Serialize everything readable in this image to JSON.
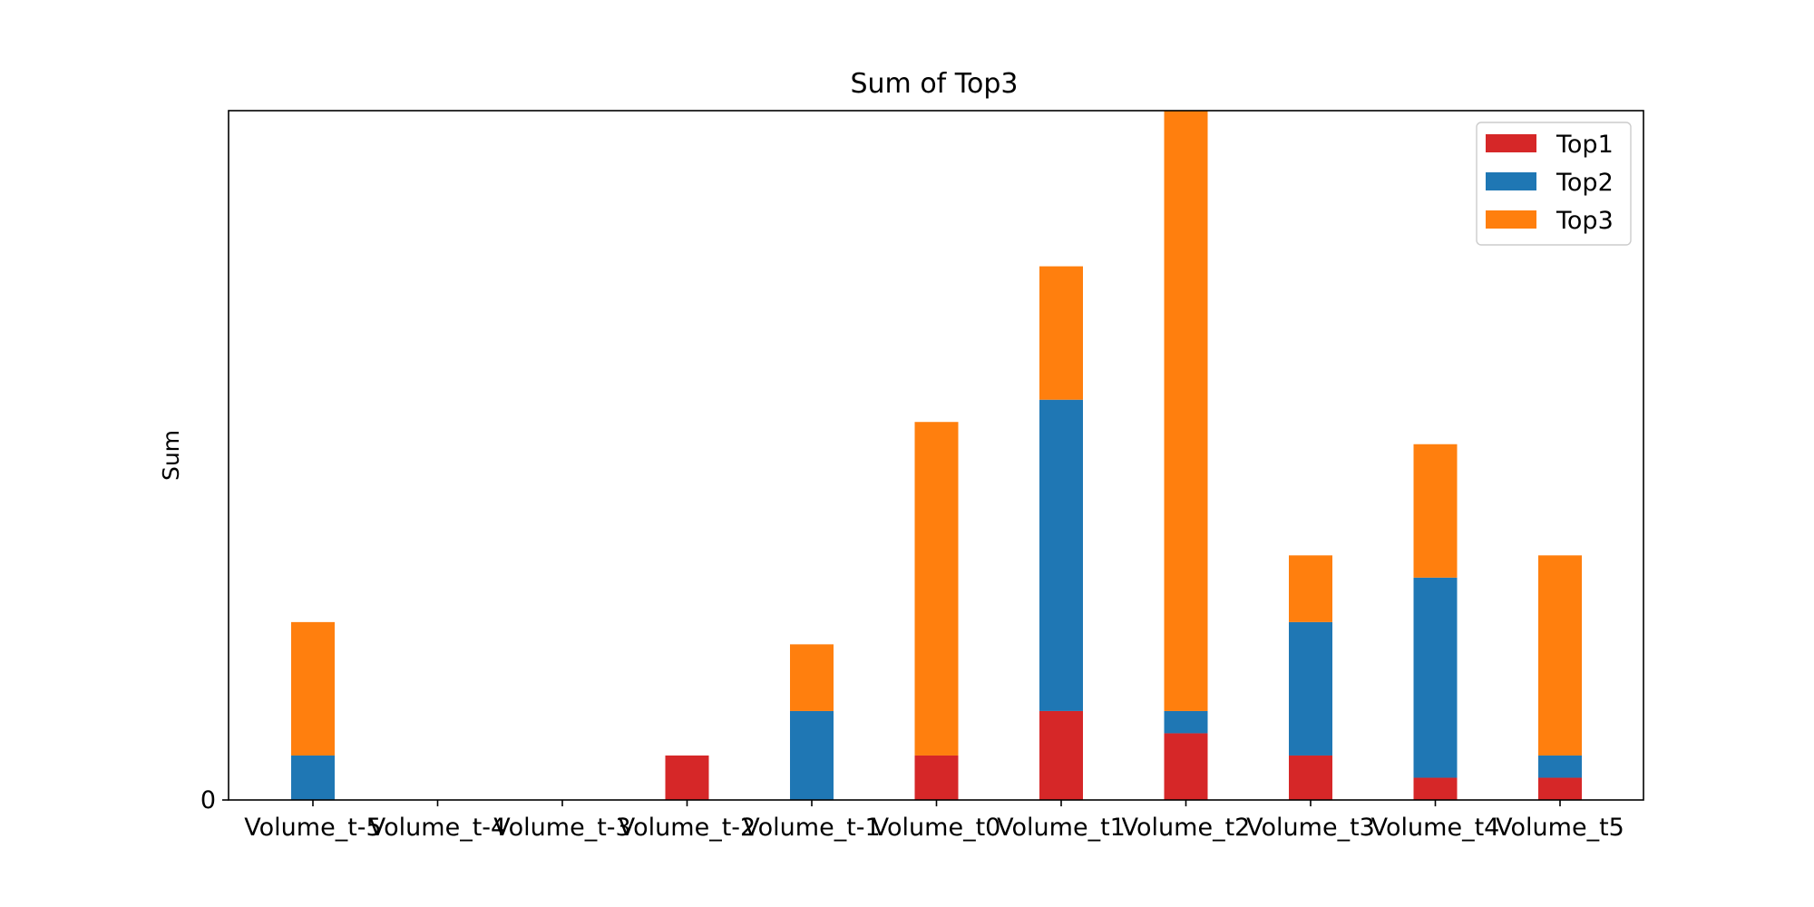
{
  "chart_data": {
    "type": "bar",
    "stacked": true,
    "title": "Sum of Top3",
    "xlabel": "",
    "ylabel": "Sum",
    "ylim": [
      0,
      31
    ],
    "yticks": [
      0
    ],
    "grid": false,
    "legend_position": "top-right",
    "categories": [
      "Volume_t-5",
      "Volume_t-4",
      "Volume_t-3",
      "Volume_t-2",
      "Volume_t-1",
      "Volume_t0",
      "Volume_t1",
      "Volume_t2",
      "Volume_t3",
      "Volume_t4",
      "Volume_t5"
    ],
    "series": [
      {
        "name": "Top1",
        "color": "#d62728",
        "values": [
          0,
          0,
          0,
          2,
          0,
          2,
          4,
          3,
          2,
          1,
          1
        ]
      },
      {
        "name": "Top2",
        "color": "#1f77b4",
        "values": [
          2,
          0,
          0,
          0,
          4,
          0,
          14,
          1,
          6,
          9,
          1
        ]
      },
      {
        "name": "Top3",
        "color": "#ff7f0e",
        "values": [
          6,
          0,
          0,
          0,
          3,
          15,
          6,
          27,
          3,
          6,
          9
        ]
      }
    ]
  }
}
